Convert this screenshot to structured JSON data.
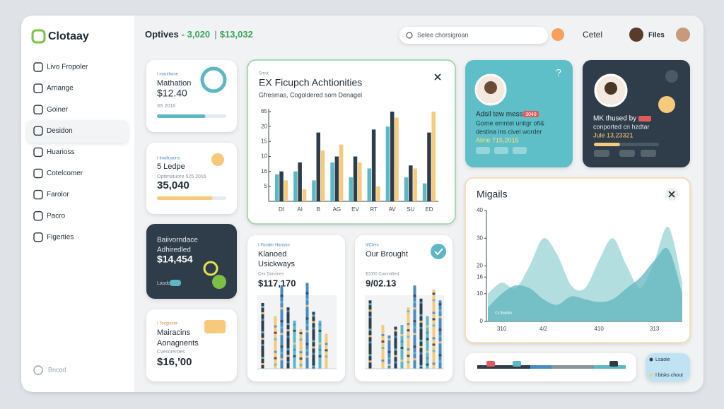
{
  "brand": "Clotaay",
  "sidebar": {
    "items": [
      "Livo Fropoler",
      "Arriange",
      "Goiner",
      "Desidon",
      "Huarioss",
      "Cotelcomer",
      "Farolor",
      "Pacro",
      "Figerties"
    ],
    "active": 3,
    "footer": "Bncod"
  },
  "header": {
    "title": "Optives",
    "stat1": "- 3,020",
    "stat2": "$13,032",
    "search": "Selee chorsigroan",
    "link": "Cetel",
    "user": "Files"
  },
  "cards": [
    {
      "tag": "I mauthone",
      "title": "Mathation",
      "value": "$12.40",
      "note": "S5 2016",
      "progress": 70
    },
    {
      "tag": "I Imolluaons",
      "title": "5 Ledpe",
      "note": "Optimatuore 525 2016",
      "value": "35,040",
      "progress": 80
    },
    {
      "title": "Baiivorndace",
      "subtitle": "Adhiredled",
      "value": "$14,454",
      "note": "Lasdo"
    },
    {
      "tag": "I Tosguicer",
      "title": "Mairacins",
      "subtitle": "Aonagnents",
      "note": "Cvesoreroes",
      "value": "$16,'00"
    }
  ],
  "profiles": [
    {
      "name": "Adsil tew mess",
      "badge": "3048",
      "lines": [
        "Gome emntel unitgr ofl&",
        "destina ins civel worder"
      ],
      "date": "Alme 715,2015"
    },
    {
      "name": "MK thused by",
      "lines": [
        "conported cn hzdtar"
      ],
      "date": "Jule 13,23321",
      "progress": 40
    }
  ],
  "legend_card": {
    "items": [
      "Lsaoie",
      "I bisks chout"
    ]
  },
  "chart_data": [
    {
      "type": "bar",
      "label": "Smst",
      "title": "EX Ficupch Achtionities",
      "subtitle": "Gfresmas, Cogoldered som Denagel",
      "categories": [
        "DI",
        "AI",
        "B",
        "AG",
        "EV",
        "RT",
        "AV",
        "SU",
        "ED"
      ],
      "series": [
        {
          "color": "#5bb8c4",
          "values": [
            9,
            10,
            7,
            13,
            8,
            11,
            25,
            8,
            6
          ]
        },
        {
          "color": "#2f3d4a",
          "values": [
            10,
            13,
            23,
            15,
            15,
            24,
            30,
            12,
            23
          ]
        },
        {
          "color": "#f7c97a",
          "values": [
            7,
            4,
            17,
            19,
            13,
            5,
            28,
            11,
            30
          ]
        }
      ],
      "ylim": [
        0,
        30
      ],
      "yticks": [
        {
          "value": 30,
          "label": "65"
        },
        {
          "value": 25,
          "label": "20"
        },
        {
          "value": 20,
          "label": "15"
        },
        {
          "value": 15,
          "label": "10"
        },
        {
          "value": 10,
          "label": "16"
        },
        5
      ]
    },
    {
      "type": "area",
      "title": "Migails",
      "annotation": "Cs Baaloin",
      "categories": [
        null,
        "310",
        null,
        null,
        "4/2",
        null,
        null,
        null,
        "410",
        null,
        null,
        null,
        "313",
        null,
        null
      ],
      "series": [
        {
          "color": "#9fd6d8",
          "values": [
            10,
            14,
            12,
            20,
            30,
            24,
            13,
            12,
            22,
            30,
            20,
            12,
            22,
            34,
            14
          ]
        },
        {
          "color": "#5fb6bd",
          "values": [
            5,
            10,
            13,
            12,
            8,
            6,
            9,
            8,
            7,
            8,
            12,
            16,
            22,
            26,
            10
          ]
        }
      ],
      "ylim": [
        0,
        40
      ],
      "yticks": [
        0,
        10,
        16,
        20,
        30,
        40
      ]
    },
    {
      "type": "bar",
      "tag": "I Fonder Hanson",
      "title": "Klanoed",
      "subtitle": "Usickways",
      "note": "Cex Donnnes",
      "value": "$117,170",
      "values": [
        75,
        0,
        60,
        95,
        70,
        55,
        45,
        98,
        65,
        55,
        40,
        0
      ],
      "ylim": [
        0,
        100
      ]
    },
    {
      "type": "bar",
      "tag": "Il/Ches",
      "title": "Our Brought",
      "note": "$1000 Commilted",
      "value": "9/02.13",
      "values": [
        78,
        0,
        50,
        38,
        48,
        50,
        70,
        95,
        80,
        60,
        90,
        78
      ],
      "ylim": [
        0,
        100
      ]
    }
  ]
}
